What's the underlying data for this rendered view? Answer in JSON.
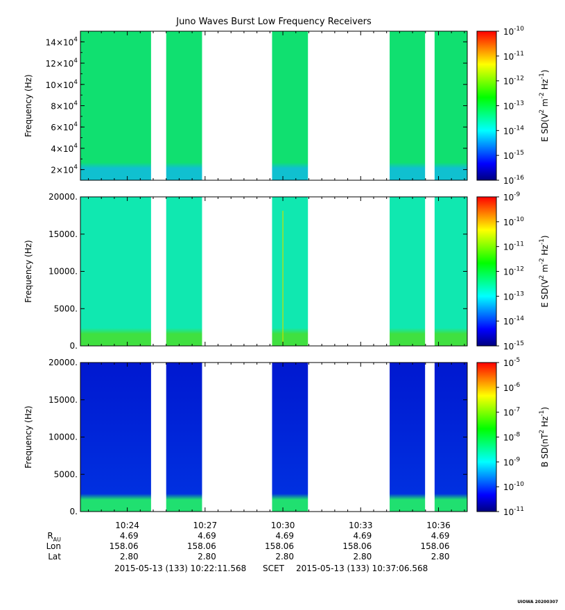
{
  "title": "Juno Waves Burst Low Frequency Receivers",
  "colors": {
    "background": "#ffffff",
    "axis": "#000000"
  },
  "colormap": [
    "#000080",
    "#0000ff",
    "#0080ff",
    "#00ffff",
    "#00ff80",
    "#00ff00",
    "#80ff00",
    "#ffff00",
    "#ff8000",
    "#ff0000"
  ],
  "time": {
    "start": "10:22:11.568",
    "end": "10:37:06.568",
    "ticks": [
      "10:24",
      "10:27",
      "10:30",
      "10:33",
      "10:36"
    ],
    "data_intervals": [
      [
        "10:22:11",
        "10:24:55"
      ],
      [
        "10:25:30",
        "10:26:53"
      ],
      [
        "10:29:35",
        "10:30:58"
      ],
      [
        "10:34:07",
        "10:35:29"
      ],
      [
        "10:35:51",
        "10:37:06"
      ]
    ]
  },
  "chart_data": [
    {
      "type": "heatmap",
      "panel": "top",
      "ylabel": "Frequency (Hz)",
      "ylim": [
        10000,
        150000
      ],
      "ytick_mantissas": [
        "2",
        "4",
        "6",
        "8",
        "10",
        "12",
        "14"
      ],
      "ytick_values": [
        20000,
        40000,
        60000,
        80000,
        100000,
        120000,
        140000
      ],
      "ytick_exponent": "4",
      "colorbar": {
        "label_main": "E SD(V",
        "label_parts": [
          "2",
          " m",
          "-2",
          " Hz",
          "-1",
          ")"
        ],
        "ticks": [
          "-10",
          "-11",
          "-12",
          "-13",
          "-14",
          "-15",
          "-16"
        ]
      },
      "fill": "#10e070",
      "fill_low": "#10c0d0",
      "fill_high": "#10e070",
      "streaks": []
    },
    {
      "type": "heatmap",
      "panel": "middle",
      "ylabel": "Frequency (Hz)",
      "ylim": [
        0,
        20000
      ],
      "ytick_labels": [
        "0.",
        "5000.",
        "10000.",
        "15000.",
        "20000."
      ],
      "ytick_values": [
        0,
        5000,
        10000,
        15000,
        20000
      ],
      "colorbar": {
        "label_main": "E SD(V",
        "label_parts": [
          "2",
          " m",
          "-2",
          " Hz",
          "-1",
          ")"
        ],
        "ticks": [
          "-9",
          "-10",
          "-11",
          "-12",
          "-13",
          "-14",
          "-15"
        ]
      },
      "fill": "#10e8b0",
      "fill_low": "#40e040",
      "fill_high": "#10e8b0",
      "streaks": [
        "10:30:00"
      ]
    },
    {
      "type": "heatmap",
      "panel": "bottom",
      "ylabel": "Frequency (Hz)",
      "ylim": [
        0,
        20000
      ],
      "ytick_labels": [
        "0.",
        "5000.",
        "10000.",
        "15000.",
        "20000."
      ],
      "ytick_values": [
        0,
        5000,
        10000,
        15000,
        20000
      ],
      "colorbar": {
        "label_main": "B SD(nT",
        "label_parts": [
          "2",
          " Hz",
          "-1",
          ")"
        ],
        "ticks": [
          "-5",
          "-6",
          "-7",
          "-8",
          "-9",
          "-10",
          "-11"
        ]
      },
      "fill": "#0030e0",
      "fill_low": "#20e070",
      "fill_high": "#0018d0",
      "streaks": []
    }
  ],
  "ephemeris": {
    "rows": [
      {
        "label_main": "R",
        "label_sub": "AU",
        "values": [
          "4.69",
          "4.69",
          "4.69",
          "4.69",
          "4.69"
        ]
      },
      {
        "label_main": "Lon",
        "label_sub": "",
        "values": [
          "158.06",
          "158.06",
          "158.06",
          "158.06",
          "158.06"
        ]
      },
      {
        "label_main": "Lat",
        "label_sub": "",
        "values": [
          "2.80",
          "2.80",
          "2.80",
          "2.80",
          "2.80"
        ]
      }
    ]
  },
  "footer": {
    "start": "2015-05-13 (133) 10:22:11.568",
    "frame": "SCET",
    "end": "2015-05-13 (133) 10:37:06.568"
  },
  "stamp": "UIOWA 20200307"
}
